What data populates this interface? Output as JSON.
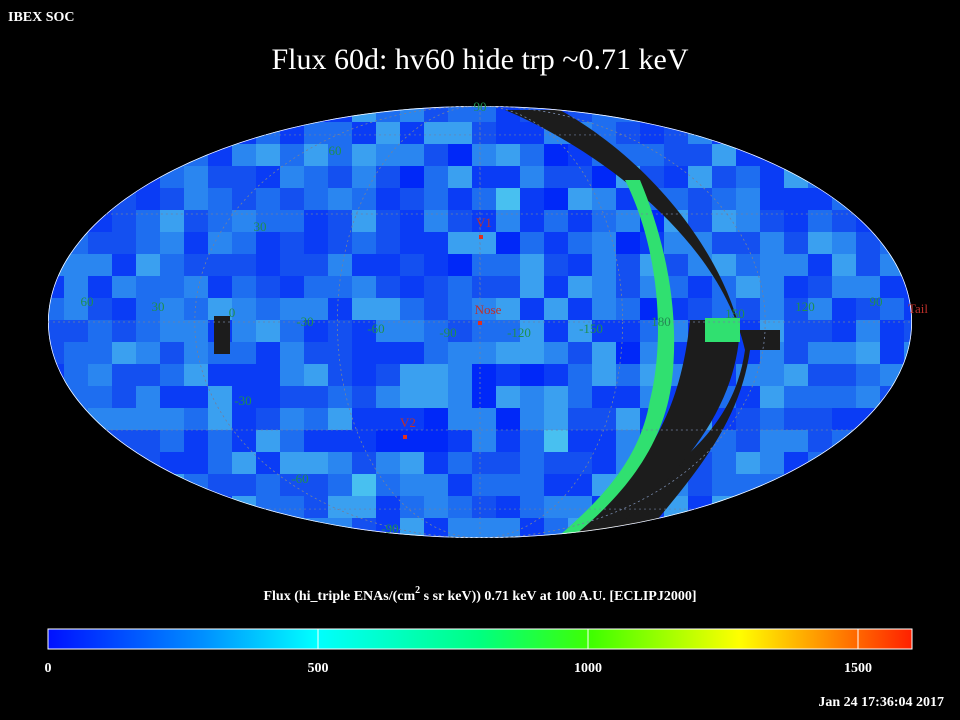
{
  "header": {
    "source": "IBEX SOC",
    "title": "Flux   60d: hv60 hide trp ~0.71 keV",
    "timestamp": "Jan 24 17:36:04 2017"
  },
  "map": {
    "grid_labels": [
      "90",
      "60",
      "30",
      "60",
      "30",
      "0",
      "-30",
      "-60",
      "-90",
      "-120",
      "-150",
      "180",
      "150",
      "120",
      "90",
      "-30",
      "-60",
      "-90"
    ],
    "markers": [
      "V1",
      "Nose",
      "V2",
      "Tail"
    ]
  },
  "colorbar": {
    "title_parts": [
      "Flux (hi_triple ENAs/(cm",
      "2",
      " s sr keV))  0.71 keV at 100 A.U. [ECLIPJ2000]"
    ],
    "lim": [
      0,
      1600
    ],
    "ticks": [
      0,
      500,
      1000,
      1500
    ]
  }
}
